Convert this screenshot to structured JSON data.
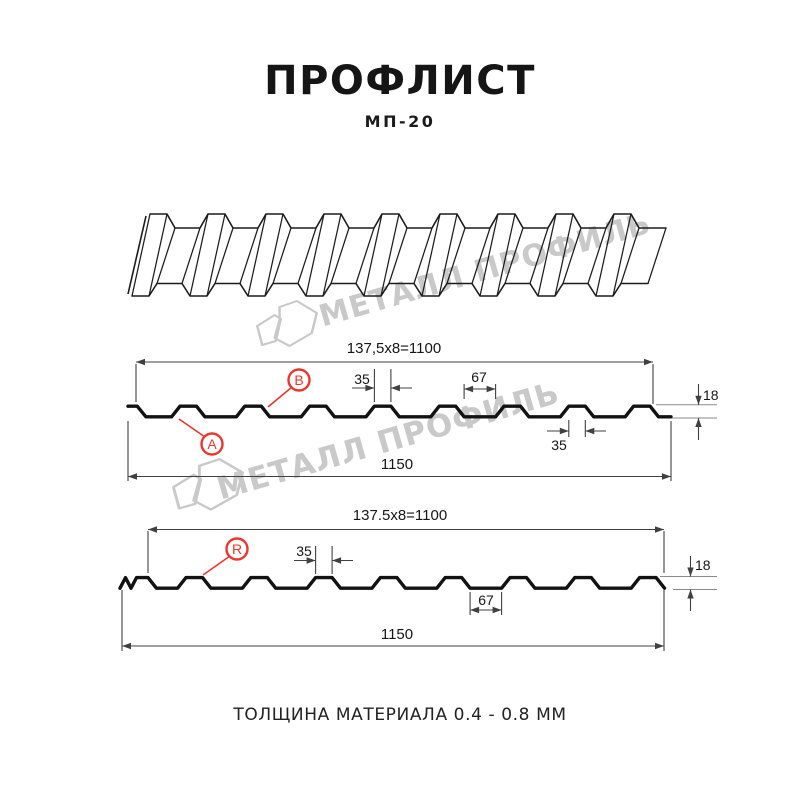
{
  "header": {
    "title": "ПРОФЛИСТ",
    "subtitle": "МП-20"
  },
  "watermark": {
    "text": "МЕТАЛЛ ПРОФИЛЬ",
    "logo_icon": "metal-profil-logo-icon",
    "color": "#c9c9c9"
  },
  "colors": {
    "accent_red": "#ee352b",
    "line_black": "#1c1c1c",
    "dim_gray": "#404040"
  },
  "diagram_top": {
    "pitch_dim": "137,5x8=1100",
    "rib_top_dim": "35",
    "valley_dim": "67",
    "height_dim": "18",
    "rib_bottom_dim": "35",
    "total_width_dim": "1150",
    "label_a": "А",
    "label_b": "В"
  },
  "diagram_bottom": {
    "pitch_dim": "137.5x8=1100",
    "rib_top_dim": "35",
    "valley_dim": "67",
    "height_dim": "18",
    "total_width_dim": "1150",
    "label_r": "R"
  },
  "footer": {
    "text": "ТОЛЩИНА МАТЕРИАЛА 0.4 - 0.8 ММ"
  }
}
